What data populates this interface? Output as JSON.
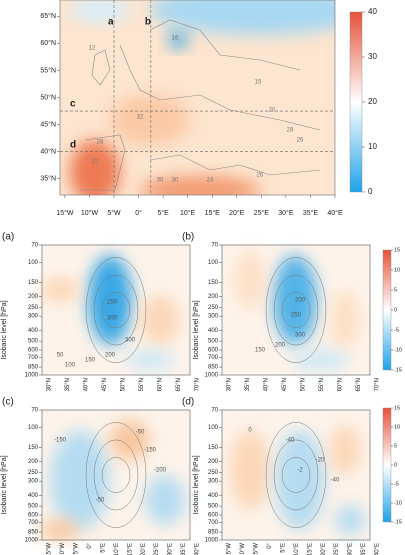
{
  "map": {
    "xlim": [
      -16,
      40
    ],
    "ylim": [
      32,
      68
    ],
    "lat_ticks": [
      {
        "value": 35,
        "label": "35°N"
      },
      {
        "value": 40,
        "label": "40°N"
      },
      {
        "value": 45,
        "label": "45°N"
      },
      {
        "value": 50,
        "label": "50°N"
      },
      {
        "value": 55,
        "label": "55°N"
      },
      {
        "value": 60,
        "label": "60°N"
      },
      {
        "value": 65,
        "label": "65°N"
      }
    ],
    "lon_ticks": [
      {
        "value": -15,
        "label": "15°W"
      },
      {
        "value": -10,
        "label": "10°W"
      },
      {
        "value": -5,
        "label": "5°W"
      },
      {
        "value": 0,
        "label": "0°"
      },
      {
        "value": 5,
        "label": "5°E"
      },
      {
        "value": 10,
        "label": "10°E"
      },
      {
        "value": 15,
        "label": "15°E"
      },
      {
        "value": 20,
        "label": "20°E"
      },
      {
        "value": 25,
        "label": "25°E"
      },
      {
        "value": 30,
        "label": "30°E"
      },
      {
        "value": 35,
        "label": "35°E"
      },
      {
        "value": 40,
        "label": "40°E"
      }
    ],
    "sections": [
      {
        "name": "a",
        "lon": -5
      },
      {
        "name": "b",
        "lon": 2.5
      },
      {
        "name": "c",
        "lat": 47.5
      },
      {
        "name": "d",
        "lat": 40
      }
    ],
    "contour_labels": [
      "12",
      "16",
      "15",
      "20",
      "32",
      "28",
      "22",
      "30",
      "30",
      "24",
      "26",
      "28",
      "26"
    ],
    "colorbar": {
      "lim": [
        0,
        40
      ],
      "ticks": [
        0,
        10,
        20,
        30,
        40
      ]
    }
  },
  "panels": [
    {
      "letter": "(a)",
      "xticks": [
        "30°N",
        "35°N",
        "40°N",
        "45°N",
        "50°N",
        "55°N",
        "60°N",
        "65°N",
        "70°N"
      ],
      "contour_labels": [
        "250",
        "300",
        "300",
        "200",
        "150",
        "100",
        "50"
      ]
    },
    {
      "letter": "(b)",
      "xticks": [
        "30°N",
        "35°N",
        "40°N",
        "45°N",
        "50°N",
        "55°N",
        "60°N",
        "65°N",
        "70°N"
      ],
      "contour_labels": [
        "200",
        "250",
        "300",
        "200",
        "150"
      ]
    },
    {
      "letter": "(c)",
      "xticks": [
        "15°W",
        "10°W",
        "5°W",
        "0°",
        "5°E",
        "10°E",
        "15°E",
        "20°E",
        "25°E",
        "30°E",
        "35°E",
        "40°E"
      ],
      "contour_labels": [
        "-150",
        "-50",
        "-150",
        "-200",
        "-50"
      ]
    },
    {
      "letter": "(d)",
      "xticks": [
        "15°W",
        "10°W",
        "5°W",
        "0°",
        "5°E",
        "10°E",
        "15°E",
        "20°E",
        "25°E",
        "30°E",
        "35°E",
        "40°E"
      ],
      "contour_labels": [
        "0",
        "-40",
        "-2",
        "-20",
        "-40"
      ]
    }
  ],
  "ylabel": "Isobaric level [hPa]",
  "ylim": [
    70,
    1000
  ],
  "log_y": true,
  "yticks": [
    70,
    100,
    150,
    200,
    250,
    300,
    400,
    500,
    600,
    700,
    850,
    1000
  ],
  "colorbar": {
    "lim": [
      -15,
      15
    ],
    "ticks": [
      15,
      10,
      5,
      0,
      -5,
      -10,
      -15
    ]
  }
}
